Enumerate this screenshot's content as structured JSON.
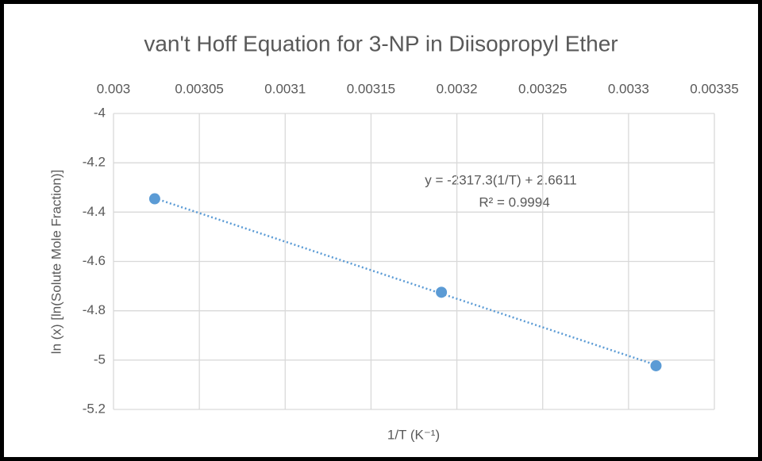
{
  "chart_data": {
    "type": "scatter",
    "title": "van't Hoff Equation for 3-NP in Diisopropyl Ether",
    "x_label": "1/T (K⁻¹)",
    "y_label": "ln (x) [ln(Solute Mole Fraction)]",
    "series": [
      {
        "name": "3-NP",
        "color": "#5b9bd5",
        "x": [
          0.003024,
          0.003191,
          0.003316
        ],
        "values": [
          -4.346,
          -4.725,
          -5.023
        ]
      }
    ],
    "trendline": {
      "equation": "y = -2317.3(1/T) + 2.6611",
      "r_squared": "R² = 0.9994"
    },
    "xlim": [
      0.003,
      0.00335
    ],
    "xticks": [
      0.003,
      0.00305,
      0.0031,
      0.00315,
      0.0032,
      0.00325,
      0.0033,
      0.00335
    ],
    "ylim": [
      -5.2,
      -4
    ],
    "yticks": [
      -4,
      -4.2,
      -4.4,
      -4.6,
      -4.8,
      -5,
      -5.2
    ],
    "grid": true
  }
}
